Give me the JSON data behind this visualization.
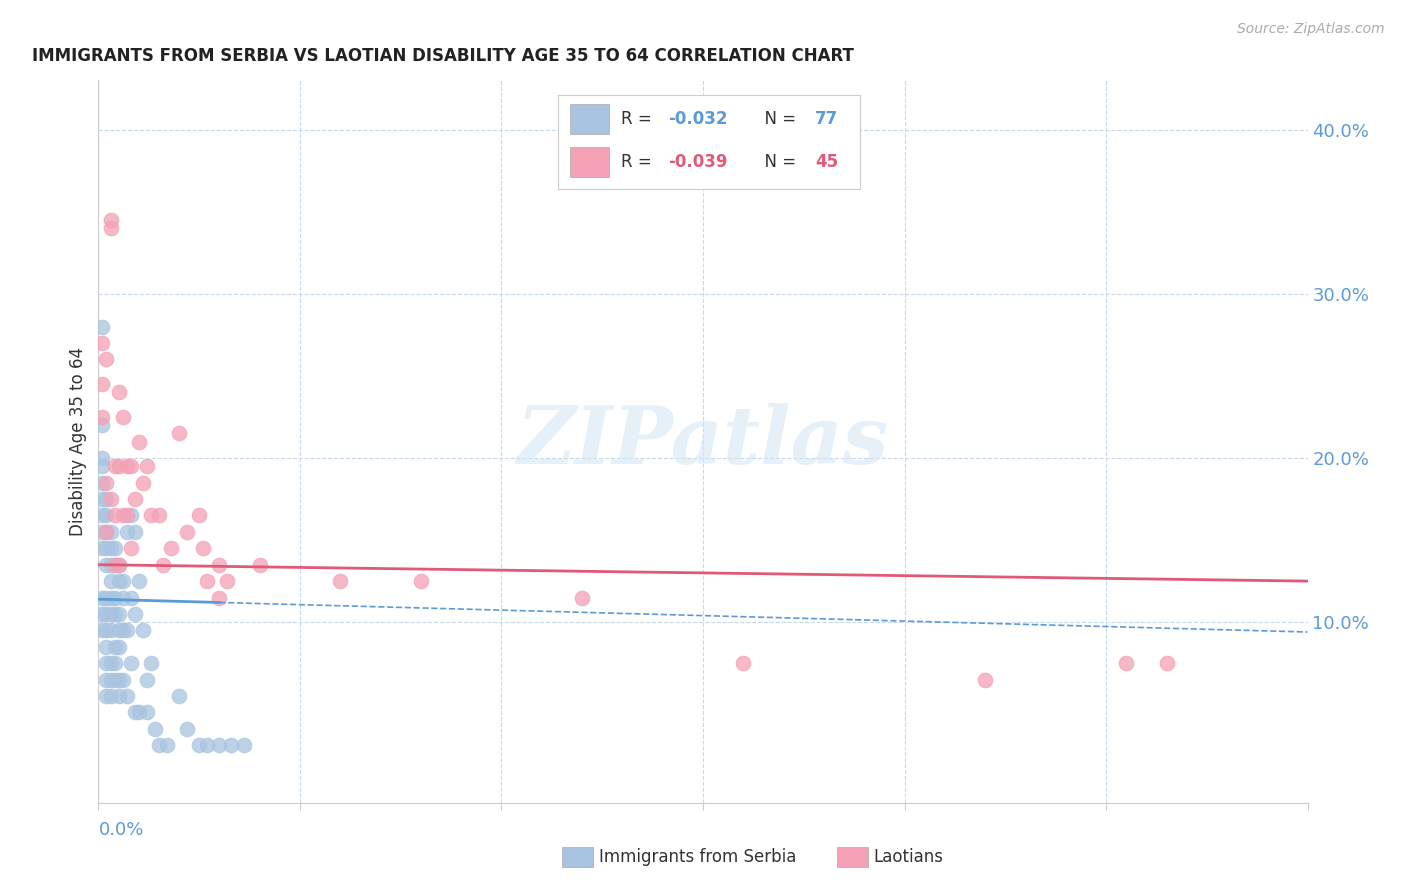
{
  "title": "IMMIGRANTS FROM SERBIA VS LAOTIAN DISABILITY AGE 35 TO 64 CORRELATION CHART",
  "source": "Source: ZipAtlas.com",
  "ylabel": "Disability Age 35 to 64",
  "legend_label1": "Immigrants from Serbia",
  "legend_label2": "Laotians",
  "r1": "-0.032",
  "n1": "77",
  "r2": "-0.039",
  "n2": "45",
  "xlim": [
    0.0,
    0.3
  ],
  "ylim": [
    -0.01,
    0.43
  ],
  "right_yticks": [
    0.1,
    0.2,
    0.3,
    0.4
  ],
  "right_ytick_labels": [
    "10.0%",
    "20.0%",
    "30.0%",
    "40.0%"
  ],
  "color_blue": "#a8c4e0",
  "color_pink": "#f4a0b5",
  "color_blue_dark": "#4472c4",
  "color_pink_dark": "#e05a78",
  "color_trend_blue": "#5b9bd5",
  "color_trend_pink": "#e05a78",
  "watermark": "ZIPatlas",
  "serbia_x": [
    0.001,
    0.001,
    0.001,
    0.001,
    0.001,
    0.001,
    0.001,
    0.001,
    0.001,
    0.001,
    0.001,
    0.001,
    0.002,
    0.002,
    0.002,
    0.002,
    0.002,
    0.002,
    0.002,
    0.002,
    0.002,
    0.002,
    0.002,
    0.002,
    0.003,
    0.003,
    0.003,
    0.003,
    0.003,
    0.003,
    0.003,
    0.003,
    0.003,
    0.003,
    0.004,
    0.004,
    0.004,
    0.004,
    0.004,
    0.004,
    0.004,
    0.005,
    0.005,
    0.005,
    0.005,
    0.005,
    0.005,
    0.005,
    0.006,
    0.006,
    0.006,
    0.006,
    0.007,
    0.007,
    0.007,
    0.008,
    0.008,
    0.008,
    0.009,
    0.009,
    0.009,
    0.01,
    0.01,
    0.011,
    0.012,
    0.012,
    0.013,
    0.014,
    0.015,
    0.017,
    0.02,
    0.022,
    0.025,
    0.027,
    0.03,
    0.033,
    0.036
  ],
  "serbia_y": [
    0.28,
    0.22,
    0.2,
    0.195,
    0.185,
    0.175,
    0.165,
    0.155,
    0.145,
    0.115,
    0.105,
    0.095,
    0.175,
    0.165,
    0.155,
    0.145,
    0.135,
    0.115,
    0.105,
    0.095,
    0.085,
    0.075,
    0.065,
    0.055,
    0.155,
    0.145,
    0.135,
    0.125,
    0.115,
    0.105,
    0.095,
    0.075,
    0.065,
    0.055,
    0.145,
    0.135,
    0.115,
    0.105,
    0.085,
    0.075,
    0.065,
    0.135,
    0.125,
    0.105,
    0.095,
    0.085,
    0.065,
    0.055,
    0.125,
    0.115,
    0.095,
    0.065,
    0.155,
    0.095,
    0.055,
    0.165,
    0.115,
    0.075,
    0.155,
    0.105,
    0.045,
    0.125,
    0.045,
    0.095,
    0.065,
    0.045,
    0.075,
    0.035,
    0.025,
    0.025,
    0.055,
    0.035,
    0.025,
    0.025,
    0.025,
    0.025,
    0.025
  ],
  "laotian_x": [
    0.001,
    0.001,
    0.001,
    0.002,
    0.002,
    0.002,
    0.003,
    0.003,
    0.003,
    0.004,
    0.004,
    0.004,
    0.005,
    0.005,
    0.005,
    0.006,
    0.006,
    0.007,
    0.007,
    0.008,
    0.008,
    0.009,
    0.01,
    0.011,
    0.012,
    0.013,
    0.015,
    0.016,
    0.018,
    0.02,
    0.022,
    0.025,
    0.026,
    0.027,
    0.03,
    0.03,
    0.032,
    0.04,
    0.06,
    0.08,
    0.12,
    0.16,
    0.22,
    0.255,
    0.265
  ],
  "laotian_y": [
    0.27,
    0.245,
    0.225,
    0.26,
    0.185,
    0.155,
    0.34,
    0.345,
    0.175,
    0.195,
    0.165,
    0.135,
    0.24,
    0.195,
    0.135,
    0.225,
    0.165,
    0.195,
    0.165,
    0.195,
    0.145,
    0.175,
    0.21,
    0.185,
    0.195,
    0.165,
    0.165,
    0.135,
    0.145,
    0.215,
    0.155,
    0.165,
    0.145,
    0.125,
    0.135,
    0.115,
    0.125,
    0.135,
    0.125,
    0.125,
    0.115,
    0.075,
    0.065,
    0.075,
    0.075
  ],
  "trend_blue_x0": 0.0,
  "trend_blue_y0": 0.114,
  "trend_blue_x1": 0.03,
  "trend_blue_y1": 0.112,
  "trend_blue_solid_end": 0.03,
  "trend_blue_dashed_end": 0.3,
  "trend_pink_x0": 0.0,
  "trend_pink_y0": 0.135,
  "trend_pink_x1": 0.3,
  "trend_pink_y1": 0.125,
  "trend_pink_solid_end": 0.3
}
